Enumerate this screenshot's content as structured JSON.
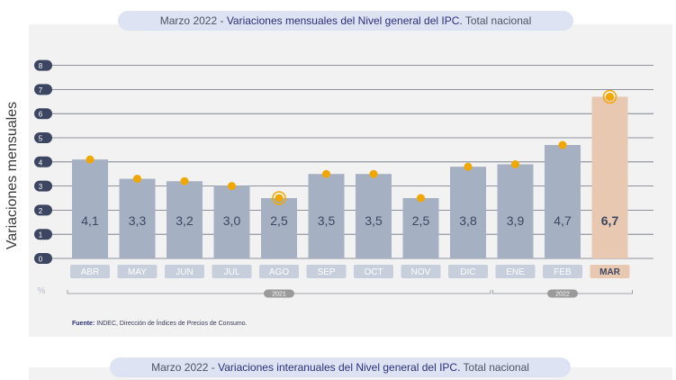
{
  "titles": {
    "monthly": {
      "prefix": "Marzo 2022 - ",
      "main": "Variaciones mensuales del Nivel general del IPC.",
      "suffix": " Total nacional"
    },
    "annual": {
      "prefix": "Marzo 2022 - ",
      "main": "Variaciones interanuales del Nivel general del IPC.",
      "suffix": " Total nacional"
    }
  },
  "source": {
    "label": "Fuente:",
    "text": " INDEC, Dirección de Índices de Precios de Consumo."
  },
  "colors": {
    "bar": "#a6b0c3",
    "bar_highlight": "#e9c8b2",
    "dot": "#f0a800",
    "grid": "#6e7180",
    "month_pill": "#c7cfdc",
    "month_pill_highlight": "#e9c8b2",
    "axis_pill": "#3d4660",
    "year_pill": "#9a9a9a"
  },
  "chart_data": {
    "type": "bar",
    "ylabel": "Variaciones mensuales",
    "unit_label": "%",
    "ylim": [
      0,
      8
    ],
    "yticks": [
      0,
      1,
      2,
      3,
      4,
      5,
      6,
      7,
      8
    ],
    "grid": true,
    "categories": [
      "ABR",
      "MAY",
      "JUN",
      "JUL",
      "AGO",
      "SEP",
      "OCT",
      "NOV",
      "DIC",
      "ENE",
      "FEB",
      "MAR"
    ],
    "values": [
      4.1,
      3.3,
      3.2,
      3.0,
      2.5,
      3.5,
      3.5,
      2.5,
      3.8,
      3.9,
      4.7,
      6.7
    ],
    "value_labels": [
      "4,1",
      "3,3",
      "3,2",
      "3,0",
      "2,5",
      "3,5",
      "3,5",
      "2,5",
      "3,8",
      "3,9",
      "4,7",
      "6,7"
    ],
    "highlight_index": 11,
    "ringed_points": [
      4,
      11
    ],
    "year_groups": [
      {
        "label": "2021",
        "start": 0,
        "end": 8
      },
      {
        "label": "2022",
        "start": 9,
        "end": 11
      }
    ]
  }
}
